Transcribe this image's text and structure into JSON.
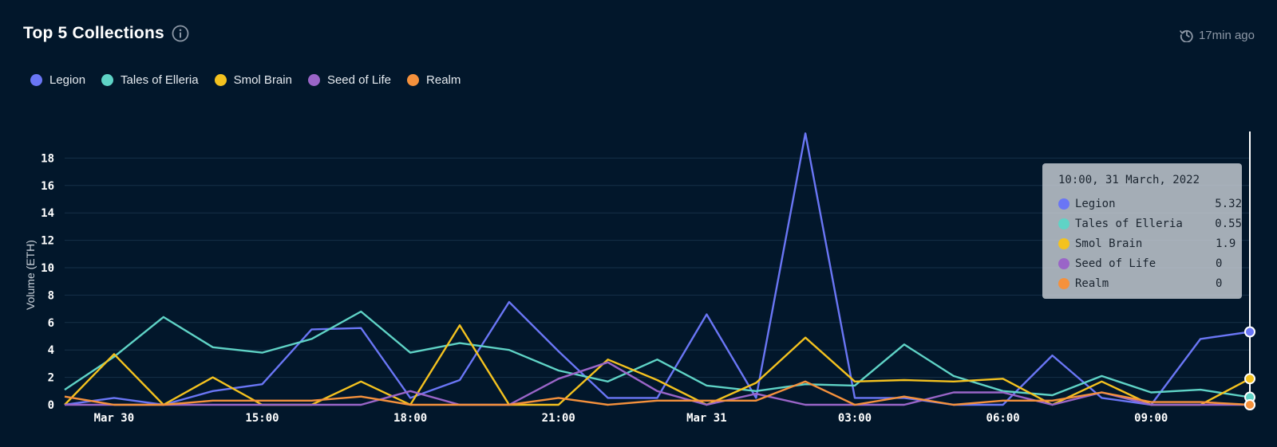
{
  "header": {
    "title": "Top 5 Collections",
    "updated": "17min ago"
  },
  "legend": [
    {
      "name": "Legion",
      "color": "#6a76f5"
    },
    {
      "name": "Tales of Elleria",
      "color": "#5fd3c6"
    },
    {
      "name": "Smol Brain",
      "color": "#f4c21f"
    },
    {
      "name": "Seed of Life",
      "color": "#9a65c8"
    },
    {
      "name": "Realm",
      "color": "#f5913c"
    }
  ],
  "tooltip": {
    "title": "10:00, 31 March, 2022",
    "rows": [
      {
        "name": "Legion",
        "value": "5.32",
        "color": "#6a76f5"
      },
      {
        "name": "Tales of Elleria",
        "value": "0.55",
        "color": "#5fd3c6"
      },
      {
        "name": "Smol Brain",
        "value": "1.9",
        "color": "#f4c21f"
      },
      {
        "name": "Seed of Life",
        "value": "0",
        "color": "#9a65c8"
      },
      {
        "name": "Realm",
        "value": "0",
        "color": "#f5913c"
      }
    ]
  },
  "chart_data": {
    "type": "line",
    "title": "Top 5 Collections",
    "xlabel": "",
    "ylabel": "Volume (ETH)",
    "ylim": [
      0,
      20
    ],
    "yticks": [
      0,
      2,
      4,
      6,
      8,
      10,
      12,
      14,
      16,
      18
    ],
    "x": [
      "2022-03-29 10:00",
      "2022-03-29 11:00",
      "2022-03-29 12:00",
      "2022-03-29 13:00",
      "2022-03-29 14:00",
      "2022-03-29 15:00",
      "2022-03-29 16:00",
      "2022-03-29 17:00",
      "2022-03-29 18:00",
      "2022-03-29 19:00",
      "2022-03-29 20:00",
      "2022-03-29 21:00",
      "2022-03-29 22:00",
      "2022-03-29 23:00",
      "2022-03-30 00:00",
      "2022-03-30 01:00",
      "2022-03-30 02:00",
      "2022-03-30 03:00",
      "2022-03-30 04:00",
      "2022-03-30 05:00",
      "2022-03-30 06:00",
      "2022-03-30 07:00",
      "2022-03-30 08:00",
      "2022-03-30 09:00",
      "2022-03-30 10:00"
    ],
    "xticks": [
      {
        "x": "2022-03-29 11:00",
        "label": "Mar 30"
      },
      {
        "x": "2022-03-29 14:00",
        "label": "15:00"
      },
      {
        "x": "2022-03-29 17:00",
        "label": "18:00"
      },
      {
        "x": "2022-03-29 20:00",
        "label": "21:00"
      },
      {
        "x": "2022-03-29 23:00",
        "label": "Mar 31"
      },
      {
        "x": "2022-03-30 02:00",
        "label": "03:00"
      },
      {
        "x": "2022-03-30 05:00",
        "label": "06:00"
      },
      {
        "x": "2022-03-30 08:00",
        "label": "09:00"
      }
    ],
    "grid": true,
    "legend_position": "top-left",
    "series": [
      {
        "name": "Legion",
        "color": "#6a76f5",
        "values": [
          0,
          0.5,
          0,
          1,
          1.5,
          5.5,
          5.6,
          0.5,
          1.8,
          7.5,
          3.9,
          0.5,
          0.5,
          6.6,
          0.5,
          19.8,
          0.5,
          0.5,
          0,
          0,
          3.6,
          0.5,
          0,
          4.8,
          5.32
        ]
      },
      {
        "name": "Tales of Elleria",
        "color": "#5fd3c6",
        "values": [
          1.1,
          3.5,
          6.4,
          4.2,
          3.8,
          4.8,
          6.8,
          3.8,
          4.5,
          4.0,
          2.5,
          1.7,
          3.3,
          1.4,
          1.0,
          1.5,
          1.4,
          4.4,
          2.1,
          1.0,
          0.7,
          2.1,
          0.9,
          1.1,
          0.55
        ]
      },
      {
        "name": "Smol Brain",
        "color": "#f4c21f",
        "values": [
          0,
          3.7,
          0,
          2.0,
          0,
          0,
          1.7,
          0,
          5.8,
          0,
          0,
          3.3,
          1.8,
          0,
          1.6,
          4.9,
          1.7,
          1.8,
          1.7,
          1.9,
          0,
          1.7,
          0,
          0,
          1.9
        ]
      },
      {
        "name": "Seed of Life",
        "color": "#9a65c8",
        "values": [
          0,
          0,
          0,
          0,
          0,
          0,
          0,
          1.0,
          0,
          0,
          1.9,
          3.1,
          1.0,
          0,
          0.8,
          0,
          0,
          0,
          0.9,
          0.9,
          0,
          0.9,
          0,
          0,
          0
        ]
      },
      {
        "name": "Realm",
        "color": "#f5913c",
        "values": [
          0.6,
          0,
          0,
          0.3,
          0.3,
          0.3,
          0.6,
          0,
          0,
          0,
          0.5,
          0,
          0.3,
          0.3,
          0.3,
          1.7,
          0,
          0.6,
          0,
          0.3,
          0.3,
          0.9,
          0.2,
          0.2,
          0
        ]
      }
    ]
  }
}
